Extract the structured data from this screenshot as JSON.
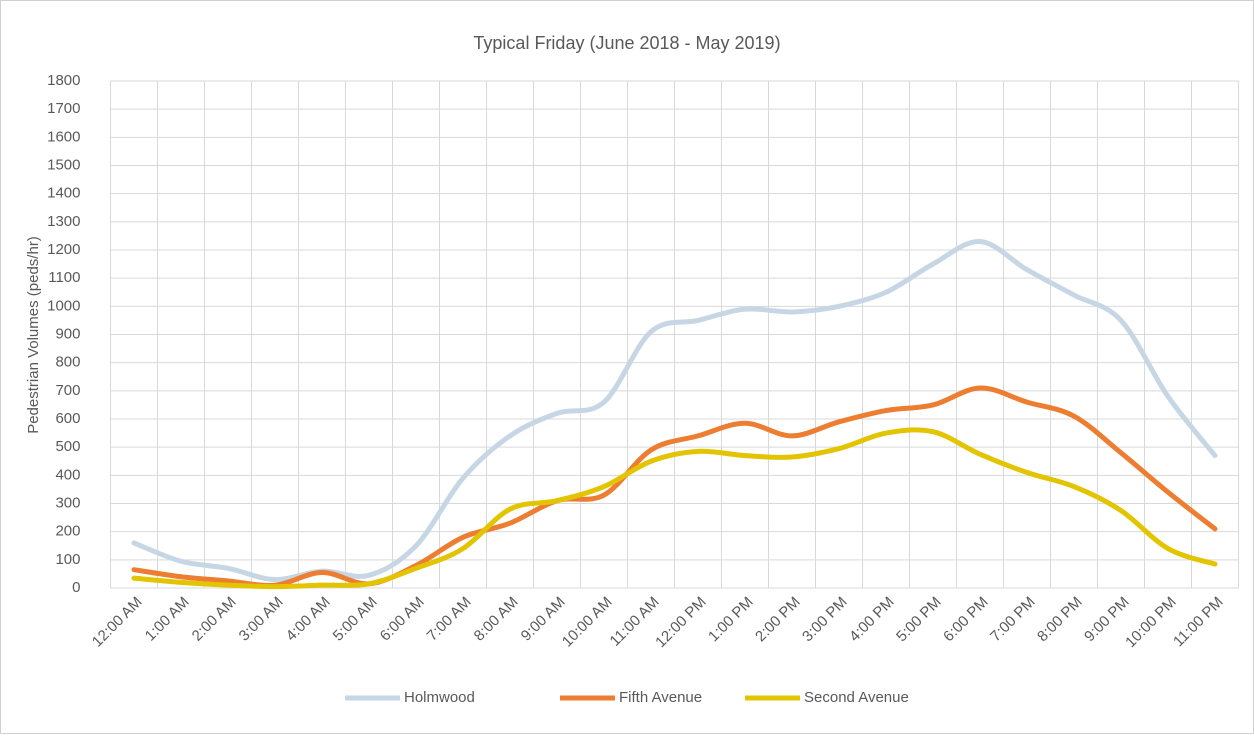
{
  "chart_data": {
    "type": "line",
    "title": "Typical Friday (June 2018 - May 2019)",
    "y_label": "Pedestrian Volumes (peds/hr)",
    "categories": [
      "12:00 AM",
      "1:00 AM",
      "2:00 AM",
      "3:00 AM",
      "4:00 AM",
      "5:00 AM",
      "6:00 AM",
      "7:00 AM",
      "8:00 AM",
      "9:00 AM",
      "10:00 AM",
      "11:00 AM",
      "12:00 PM",
      "1:00 PM",
      "2:00 PM",
      "3:00 PM",
      "4:00 PM",
      "5:00 PM",
      "6:00 PM",
      "7:00 PM",
      "8:00 PM",
      "9:00 PM",
      "10:00 PM",
      "11:00 PM"
    ],
    "series": [
      {
        "name": "Holmwood",
        "color": "#c6d6e5",
        "values": [
          160,
          95,
          70,
          30,
          60,
          45,
          150,
          390,
          540,
          620,
          660,
          910,
          950,
          990,
          980,
          1000,
          1050,
          1150,
          1230,
          1130,
          1040,
          950,
          680,
          470
        ]
      },
      {
        "name": "Fifth Avenue",
        "color": "#ed7d31",
        "values": [
          65,
          40,
          25,
          10,
          55,
          15,
          80,
          180,
          230,
          310,
          330,
          490,
          540,
          585,
          540,
          590,
          630,
          650,
          710,
          660,
          610,
          480,
          340,
          210
        ]
      },
      {
        "name": "Second Avenue",
        "color": "#e2c400",
        "values": [
          35,
          20,
          10,
          5,
          10,
          15,
          70,
          140,
          280,
          310,
          360,
          450,
          485,
          470,
          465,
          495,
          550,
          555,
          475,
          410,
          360,
          275,
          140,
          85
        ]
      }
    ],
    "ylim": [
      0,
      1800
    ],
    "yticks": [
      0,
      100,
      200,
      300,
      400,
      500,
      600,
      700,
      800,
      900,
      1000,
      1100,
      1200,
      1300,
      1400,
      1500,
      1600,
      1700,
      1800
    ],
    "grid": true,
    "smooth": true,
    "legend": "bottom"
  }
}
